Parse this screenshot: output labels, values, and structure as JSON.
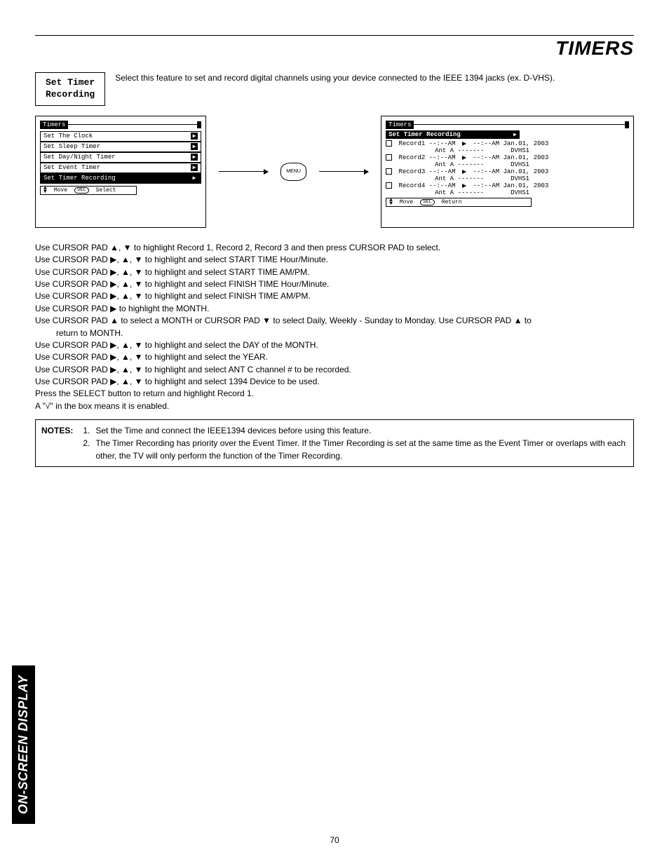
{
  "header": {
    "title": "TIMERS"
  },
  "intro": {
    "box_line1": "Set Timer",
    "box_line2": "Recording",
    "text": "Select this feature to set and record digital channels using your device connected to the IEEE 1394 jacks (ex. D-VHS)."
  },
  "left_menu": {
    "title": "Timers",
    "items": [
      {
        "label": "Set The Clock",
        "selected": false
      },
      {
        "label": "Set Sleep Timer",
        "selected": false
      },
      {
        "label": "Set Day/Night Timer",
        "selected": false
      },
      {
        "label": "Set Event Timer",
        "selected": false
      },
      {
        "label": "Set Timer Recording",
        "selected": true
      }
    ],
    "footer_move": "Move",
    "footer_select": "Select"
  },
  "menu_button": "MENU",
  "right_screen": {
    "title": "Timers",
    "subtitle": "Set Timer Recording",
    "records": [
      {
        "name": "Record1",
        "start": "--:--AM",
        "end": "--:--AM",
        "date": "Jan.01, 2003",
        "ant": "Ant A -------",
        "dev": "DVHS1"
      },
      {
        "name": "Record2",
        "start": "--:--AM",
        "end": "--:--AM",
        "date": "Jan.01, 2003",
        "ant": "Ant A -------",
        "dev": "DVHS1"
      },
      {
        "name": "Record3",
        "start": "--:--AM",
        "end": "--:--AM",
        "date": "Jan.01, 2003",
        "ant": "Ant A -------",
        "dev": "DVHS1"
      },
      {
        "name": "Record4",
        "start": "--:--AM",
        "end": "--:--AM",
        "date": "Jan.01, 2003",
        "ant": "Ant A -------",
        "dev": "DVHS1"
      }
    ],
    "footer_move": "Move",
    "footer_return": "Return"
  },
  "instructions": [
    "Use CURSOR PAD ▲, ▼ to highlight Record 1, Record 2, Record 3 and then press CURSOR PAD to select.",
    "Use CURSOR PAD ▶, ▲, ▼ to highlight and select START TIME Hour/Minute.",
    "Use CURSOR PAD ▶, ▲, ▼ to highlight and select START TIME AM/PM.",
    "Use CURSOR PAD ▶, ▲, ▼ to highlight and select FINISH TIME Hour/Minute.",
    "Use CURSOR PAD ▶, ▲, ▼ to highlight and select FINISH TIME AM/PM.",
    "Use CURSOR PAD ▶ to highlight the MONTH.",
    "Use CURSOR PAD ▲ to select a MONTH or CURSOR PAD ▼ to select Daily, Weekly - Sunday to Monday.  Use CURSOR PAD ▲ to",
    "return to MONTH.",
    "Use CURSOR PAD ▶, ▲, ▼ to highlight and select the DAY of the MONTH.",
    "Use CURSOR PAD ▶, ▲, ▼ to highlight and select the YEAR.",
    "Use CURSOR PAD ▶, ▲, ▼ to highlight and select ANT C channel # to be recorded.",
    "Use CURSOR PAD ▶, ▲, ▼ to highlight and select 1394 Device to be used.",
    "Press the SELECT button to return and highlight Record 1.",
    "A \"√\" in the box means it is enabled."
  ],
  "instructions_indent_index": 7,
  "notes": {
    "label": "NOTES:",
    "items": [
      "Set the Time and connect the IEEE1394 devices before using this feature.",
      "The Timer Recording has priority over the Event Timer.  If the Timer Recording is set at the same time as the Event Timer or overlaps with each other, the TV will only perform the function of the Timer Recording."
    ]
  },
  "side_tab": "ON-SCREEN DISPLAY",
  "page_number": "70"
}
